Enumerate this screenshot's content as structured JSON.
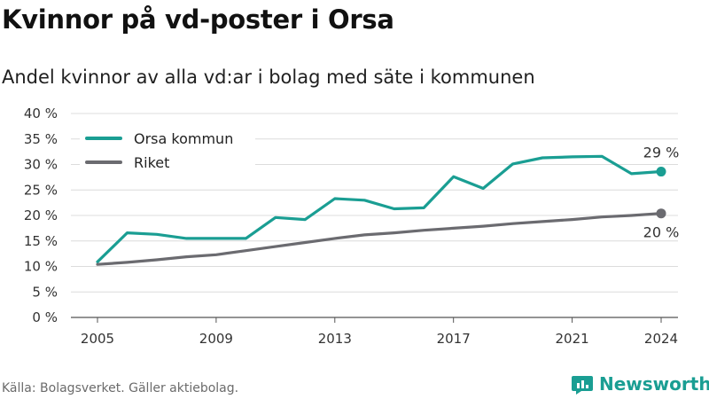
{
  "title": "Kvinnor på vd-poster i Orsa",
  "subtitle": "Andel kvinnor av alla vd:ar i bolag med säte i kommunen",
  "source": "Källa: Bolagsverket. Gäller aktiebolag.",
  "brand": {
    "name": "Newsworthy",
    "icon": "newsworthy-logo-icon",
    "color": "#1a9e93"
  },
  "chart_data": {
    "type": "line",
    "x": [
      2005,
      2006,
      2007,
      2008,
      2009,
      2010,
      2011,
      2012,
      2013,
      2014,
      2015,
      2016,
      2017,
      2018,
      2019,
      2020,
      2021,
      2022,
      2023,
      2024
    ],
    "series": [
      {
        "name": "Orsa kommun",
        "color": "#1a9e93",
        "values": [
          10.9,
          16.6,
          16.3,
          15.5,
          15.5,
          15.5,
          19.6,
          19.2,
          23.3,
          23.0,
          21.3,
          21.5,
          27.6,
          25.3,
          30.1,
          31.3,
          31.5,
          31.6,
          28.2,
          28.6
        ],
        "end_label": "29 %"
      },
      {
        "name": "Riket",
        "color": "#6b6b70",
        "values": [
          10.4,
          10.8,
          11.3,
          11.9,
          12.3,
          13.1,
          13.9,
          14.7,
          15.5,
          16.2,
          16.6,
          17.1,
          17.5,
          17.9,
          18.4,
          18.8,
          19.2,
          19.7,
          20.0,
          20.4
        ],
        "end_label": "20 %"
      }
    ],
    "x_ticks": [
      "2005",
      "2009",
      "2013",
      "2017",
      "2021",
      "2024"
    ],
    "y_ticks": [
      "0 %",
      "5 %",
      "10 %",
      "15 %",
      "20 %",
      "25 %",
      "30 %",
      "35 %",
      "40 %"
    ],
    "ylim": [
      0,
      40
    ],
    "xlim": [
      2005,
      2024
    ],
    "grid": true,
    "legend_position": "top-left"
  }
}
